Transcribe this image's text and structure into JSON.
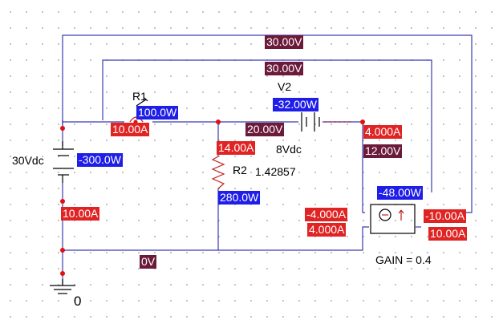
{
  "colors": {
    "wire": "#3b3bb3",
    "voltage_bg": "#6b1a3a",
    "power_bg": "#1e1ee8",
    "current_bg": "#e02424",
    "node": "#e01010",
    "grid_dot": "#b9b9b9"
  },
  "components": {
    "v1_value": "30Vdc",
    "r1_name": "R1",
    "v2_name": "V2",
    "v2_value": "8Vdc",
    "r2_name": "R2",
    "r2_value": "1.42857",
    "gain": "GAIN = 0.4",
    "ground": "0"
  },
  "labels": {
    "v_top_outer": "30.00V",
    "v_top_inner": "30.00V",
    "p_r1": "100.0W",
    "i_r1": "10.00A",
    "p_v2": "-32.00W",
    "v_mid": "20.00V",
    "i_v2": "4.000A",
    "v_right": "12.00V",
    "i_r2": "14.00A",
    "p_v1": "-300.0W",
    "p_r2": "280.0W",
    "i_v1": "10.00A",
    "p_dep": "-48.00W",
    "i_dep_left_a": "-4.000A",
    "i_dep_left_b": "4.000A",
    "i_dep_right_a": "-10.00A",
    "i_dep_right_b": "10.00A",
    "v_ground": "0V"
  }
}
